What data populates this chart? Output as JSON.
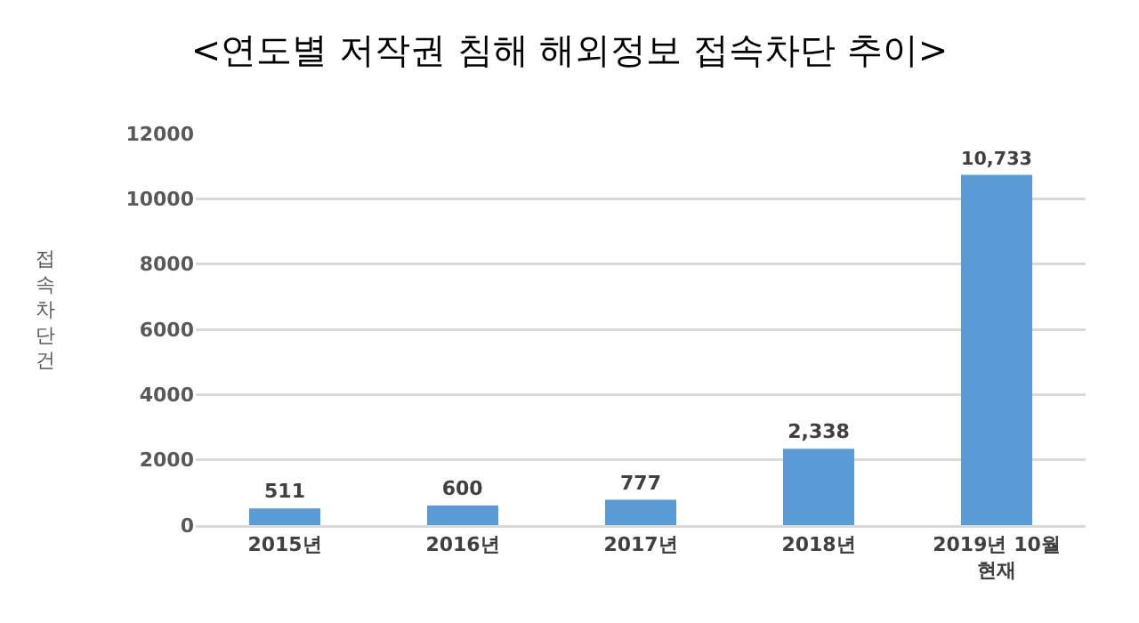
{
  "chart_data": {
    "type": "bar",
    "title": "<연도별 저작권 침해 해외정보 접속차단 추이>",
    "ylabel": "접속차단건",
    "categories": [
      "2015년",
      "2016년",
      "2017년",
      "2018년",
      "2019년 10월 현재"
    ],
    "values": [
      511,
      600,
      777,
      2338,
      10733
    ],
    "value_labels": [
      "511",
      "600",
      "777",
      "2,338",
      "10,733"
    ],
    "color": "#5b9bd5",
    "ylim": [
      0,
      12000
    ],
    "yticks": [
      0,
      2000,
      4000,
      6000,
      8000,
      10000,
      12000
    ],
    "grid": "y"
  }
}
